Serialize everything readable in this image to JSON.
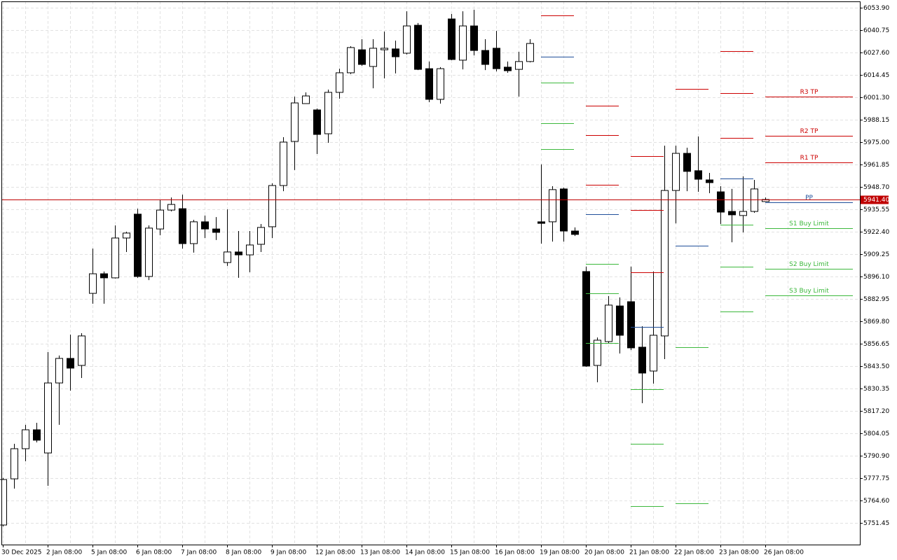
{
  "chart_data": {
    "type": "candlestick",
    "ylim": [
      5738.7,
      6057.6
    ],
    "yticks": [
      {
        "value": 6053.9,
        "label": "6053.90"
      },
      6040.75,
      {
        "value": 6027.6,
        "label": "6027.60"
      },
      6014.45,
      {
        "value": 6001.3,
        "label": "6001.30"
      },
      5988.15,
      {
        "value": 5975,
        "label": "5975.00"
      },
      5961.85,
      {
        "value": 5948.7,
        "label": "5948.70"
      },
      5935.55,
      {
        "value": 5922.4,
        "label": "5922.40"
      },
      5909.25,
      {
        "value": 5896.1,
        "label": "5896.10"
      },
      5882.95,
      {
        "value": 5869.8,
        "label": "5869.80"
      },
      5856.65,
      {
        "value": 5843.5,
        "label": "5843.50"
      },
      5830.35,
      {
        "value": 5817.2,
        "label": "5817.20"
      },
      5804.05,
      {
        "value": 5790.9,
        "label": "5790.90"
      },
      5777.75,
      {
        "value": 5764.6,
        "label": "5764.60"
      },
      5751.45
    ],
    "grid": true,
    "up_color": "#ffffff",
    "down_color": "#000000",
    "current_price": {
      "value": 5941.4,
      "label": "5941.40",
      "color": "#c00000"
    },
    "days": [
      {
        "label": "30 Dec 2025",
        "candles": [
          {
            "open": 5750.2,
            "high": 5777.8,
            "low": 5749.4,
            "close": 5776.9
          },
          {
            "open": 5777.3,
            "high": 5797.9,
            "low": 5771.6,
            "close": 5795.0
          },
          {
            "open": 5795.0,
            "high": 5809.0,
            "low": 5787.6,
            "close": 5806.1
          },
          {
            "open": 5806.1,
            "high": 5810.2,
            "low": 5798.7,
            "close": 5800.0
          }
        ]
      },
      {
        "label": "2 Jan 08:00",
        "candles": [
          {
            "open": 5792.5,
            "high": 5851.7,
            "low": 5773.2,
            "close": 5833.6
          },
          {
            "open": 5833.6,
            "high": 5849.7,
            "low": 5809.0,
            "close": 5848.0
          },
          {
            "open": 5848.0,
            "high": 5862.0,
            "low": 5829.1,
            "close": 5842.3
          },
          {
            "open": 5843.9,
            "high": 5862.8,
            "low": 5836.5,
            "close": 5861.2
          }
        ]
      },
      {
        "label": "5 Jan 08:00",
        "candles": [
          {
            "open": 5886.2,
            "high": 5912.5,
            "low": 5880.1,
            "close": 5897.7
          },
          {
            "open": 5897.7,
            "high": 5899.0,
            "low": 5880.1,
            "close": 5895.3
          },
          {
            "open": 5895.3,
            "high": 5926.1,
            "low": 5894.9,
            "close": 5918.7
          },
          {
            "open": 5918.7,
            "high": 5922.4,
            "low": 5910.5,
            "close": 5921.6
          }
        ]
      },
      {
        "label": "6 Jan 08:00",
        "candles": [
          {
            "open": 5932.7,
            "high": 5935.9,
            "low": 5895.3,
            "close": 5896.1
          },
          {
            "open": 5896.1,
            "high": 5926.1,
            "low": 5894.0,
            "close": 5924.5
          },
          {
            "open": 5924.0,
            "high": 5940.9,
            "low": 5920.3,
            "close": 5935.1
          },
          {
            "open": 5935.1,
            "high": 5942.5,
            "low": 5934.3,
            "close": 5938.4
          }
        ]
      },
      {
        "label": "7 Jan 08:00",
        "candles": [
          {
            "open": 5935.9,
            "high": 5944.2,
            "low": 5912.5,
            "close": 5915.4
          },
          {
            "open": 5915.4,
            "high": 5929.4,
            "low": 5910.1,
            "close": 5928.2
          },
          {
            "open": 5928.2,
            "high": 5931.9,
            "low": 5918.7,
            "close": 5924.0
          },
          {
            "open": 5924.0,
            "high": 5931.0,
            "low": 5917.5,
            "close": 5922.0
          }
        ]
      },
      {
        "label": "8 Jan 08:00",
        "candles": [
          {
            "open": 5904.3,
            "high": 5935.5,
            "low": 5902.3,
            "close": 5910.5
          },
          {
            "open": 5910.5,
            "high": 5922.8,
            "low": 5895.3,
            "close": 5908.8
          },
          {
            "open": 5908.8,
            "high": 5922.8,
            "low": 5898.6,
            "close": 5914.6
          },
          {
            "open": 5915.0,
            "high": 5926.9,
            "low": 5910.5,
            "close": 5924.9
          }
        ]
      },
      {
        "label": "9 Jan 08:00",
        "candles": [
          {
            "open": 5925.3,
            "high": 5950.8,
            "low": 5918.7,
            "close": 5949.5
          },
          {
            "open": 5949.5,
            "high": 5977.9,
            "low": 5946.2,
            "close": 5975.0
          },
          {
            "open": 5975.4,
            "high": 6001.7,
            "low": 5958.6,
            "close": 5998.0
          },
          {
            "open": 5997.6,
            "high": 6004.2,
            "low": 5997.6,
            "close": 6002.1
          }
        ]
      },
      {
        "label": "12 Jan 08:00",
        "candles": [
          {
            "open": 5993.9,
            "high": 5994.7,
            "low": 5968.0,
            "close": 5979.5
          },
          {
            "open": 5979.9,
            "high": 6005.8,
            "low": 5974.6,
            "close": 6004.2
          },
          {
            "open": 6004.2,
            "high": 6018.1,
            "low": 6000.5,
            "close": 6015.7
          },
          {
            "open": 6015.7,
            "high": 6031.3,
            "low": 6014.9,
            "close": 6030.5
          }
        ]
      },
      {
        "label": "13 Jan 08:00",
        "candles": [
          {
            "open": 6029.2,
            "high": 6035.4,
            "low": 6019.8,
            "close": 6020.6
          },
          {
            "open": 6019.4,
            "high": 6035.4,
            "low": 6006.6,
            "close": 6030.1
          },
          {
            "open": 6029.2,
            "high": 6039.9,
            "low": 6012.4,
            "close": 6030.1
          },
          {
            "open": 6029.7,
            "high": 6034.6,
            "low": 6015.3,
            "close": 6025.1
          }
        ]
      },
      {
        "label": "14 Jan 08:00",
        "candles": [
          {
            "open": 6027.2,
            "high": 6051.8,
            "low": 6026.4,
            "close": 6043.2
          },
          {
            "open": 6043.6,
            "high": 6044.9,
            "low": 6017.3,
            "close": 6017.7
          },
          {
            "open": 6018.1,
            "high": 6022.3,
            "low": 5998.4,
            "close": 6000.1
          },
          {
            "open": 6000.1,
            "high": 6019.0,
            "low": 5997.6,
            "close": 6018.1
          }
        ]
      },
      {
        "label": "15 Jan 08:00",
        "candles": [
          {
            "open": 6047.3,
            "high": 6050.2,
            "low": 6023.1,
            "close": 6023.5
          },
          {
            "open": 6023.1,
            "high": 6051.8,
            "low": 6017.7,
            "close": 6043.2
          },
          {
            "open": 6043.2,
            "high": 6052.7,
            "low": 6025.9,
            "close": 6028.8
          },
          {
            "open": 6028.8,
            "high": 6035.4,
            "low": 6017.3,
            "close": 6020.6
          }
        ]
      },
      {
        "label": "16 Jan 08:00",
        "candles": [
          {
            "open": 6030.1,
            "high": 6040.3,
            "low": 6016.5,
            "close": 6018.1
          },
          {
            "open": 6019.0,
            "high": 6022.3,
            "low": 6015.7,
            "close": 6016.9
          },
          {
            "open": 6017.7,
            "high": 6028.0,
            "low": 6001.7,
            "close": 6022.3
          },
          {
            "open": 6022.3,
            "high": 6035.4,
            "low": 6021.8,
            "close": 6032.9
          }
        ]
      },
      {
        "label": "19 Jan 08:00",
        "candles": [
          {
            "open": 5928.2,
            "high": 5961.9,
            "low": 5915.4,
            "close": 5927.3
          },
          {
            "open": 5928.2,
            "high": 5949.1,
            "low": 5916.6,
            "close": 5947.1
          },
          {
            "open": 5947.5,
            "high": 5948.3,
            "low": 5916.6,
            "close": 5922.8
          },
          {
            "open": 5922.8,
            "high": 5924.9,
            "low": 5919.9,
            "close": 5920.8
          }
        ],
        "pivots": [
          {
            "value": 6049.4,
            "color": "#cc0000"
          },
          {
            "value": 6025.1,
            "color": "#1f4f9a"
          },
          {
            "value": 6009.9,
            "color": "#3cb83c"
          },
          {
            "value": 5986.1,
            "color": "#3cb83c"
          },
          {
            "value": 5970.9,
            "color": "#3cb83c"
          }
        ]
      },
      {
        "label": "20 Jan 08:00",
        "candles": [
          {
            "open": 5899.0,
            "high": 5901.9,
            "low": 5843.1,
            "close": 5843.5
          },
          {
            "open": 5843.9,
            "high": 5860.3,
            "low": 5834.0,
            "close": 5858.7
          },
          {
            "open": 5857.9,
            "high": 5884.6,
            "low": 5856.7,
            "close": 5879.3
          },
          {
            "open": 5878.8,
            "high": 5883.8,
            "low": 5850.9,
            "close": 5861.6
          }
        ],
        "pivots": [
          {
            "value": 5996.4,
            "color": "#cc0000"
          },
          {
            "value": 5979.1,
            "color": "#cc0000"
          },
          {
            "value": 5950.0,
            "color": "#cc0000"
          },
          {
            "value": 5932.7,
            "color": "#1f4f9a"
          },
          {
            "value": 5903.5,
            "color": "#3cb83c"
          },
          {
            "value": 5886.2,
            "color": "#3cb83c"
          },
          {
            "value": 5857.1,
            "color": "#3cb83c"
          }
        ]
      },
      {
        "label": "21 Jan 08:00",
        "candles": [
          {
            "open": 5881.3,
            "high": 5901.9,
            "low": 5852.9,
            "close": 5854.2
          },
          {
            "open": 5854.6,
            "high": 5866.9,
            "low": 5821.7,
            "close": 5839.4
          },
          {
            "open": 5840.6,
            "high": 5899.0,
            "low": 5833.2,
            "close": 5861.6
          },
          {
            "open": 5861.2,
            "high": 5972.9,
            "low": 5847.6,
            "close": 5946.6
          }
        ],
        "pivots": [
          {
            "value": 5966.8,
            "color": "#cc0000"
          },
          {
            "value": 5935.1,
            "color": "#cc0000"
          },
          {
            "value": 5898.6,
            "color": "#cc0000"
          },
          {
            "value": 5866.5,
            "color": "#1f4f9a"
          },
          {
            "value": 5830.0,
            "color": "#3cb83c"
          },
          {
            "value": 5797.9,
            "color": "#3cb83c"
          },
          {
            "value": 5761.3,
            "color": "#3cb83c"
          }
        ]
      },
      {
        "label": "22 Jan 08:00",
        "candles": [
          {
            "open": 5946.6,
            "high": 5972.9,
            "low": 5927.3,
            "close": 5968.4
          },
          {
            "open": 5968.4,
            "high": 5971.7,
            "low": 5946.2,
            "close": 5957.8
          },
          {
            "open": 5958.2,
            "high": 5978.3,
            "low": 5945.8,
            "close": 5953.2
          },
          {
            "open": 5952.8,
            "high": 5956.9,
            "low": 5945.0,
            "close": 5951.2
          }
        ],
        "pivots": [
          {
            "value": 6006.2,
            "color": "#cc0000"
          },
          {
            "value": 5914.2,
            "color": "#1f4f9a"
          },
          {
            "value": 5854.6,
            "color": "#3cb83c"
          },
          {
            "value": 5762.9,
            "color": "#3cb83c"
          }
        ]
      },
      {
        "label": "23 Jan 08:00",
        "candles": [
          {
            "open": 5945.8,
            "high": 5949.1,
            "low": 5926.9,
            "close": 5933.9
          },
          {
            "open": 5934.3,
            "high": 5947.5,
            "low": 5916.2,
            "close": 5932.3
          },
          {
            "open": 5931.9,
            "high": 5954.9,
            "low": 5922.0,
            "close": 5934.3
          },
          {
            "open": 5934.3,
            "high": 5952.8,
            "low": 5933.5,
            "close": 5947.5
          }
        ],
        "pivots": [
          {
            "value": 6028.4,
            "color": "#cc0000"
          },
          {
            "value": 6003.8,
            "color": "#cc0000"
          },
          {
            "value": 5977.5,
            "color": "#cc0000"
          },
          {
            "value": 5953.8,
            "color": "#1f4f9a"
          },
          {
            "value": 5926.5,
            "color": "#3cb83c"
          },
          {
            "value": 5901.9,
            "color": "#3cb83c"
          },
          {
            "value": 5875.5,
            "color": "#3cb83c"
          }
        ]
      },
      {
        "label": "26 Jan 08:00",
        "candles": [
          {
            "open": 5940.1,
            "high": 5942.5,
            "low": 5940.1,
            "close": 5941.3
          }
        ],
        "pivots": [
          {
            "value": 6001.7,
            "color": "#cc0000",
            "label": "R3 TP"
          },
          {
            "value": 5978.7,
            "color": "#cc0000",
            "label": "R2 TP"
          },
          {
            "value": 5963.1,
            "color": "#cc0000",
            "label": "R1 TP"
          },
          {
            "value": 5939.7,
            "color": "#1f4f9a",
            "label": "PP"
          },
          {
            "value": 5924.4,
            "color": "#3cb83c",
            "label": "S1 Buy Limit"
          },
          {
            "value": 5900.6,
            "color": "#3cb83c",
            "label": "S2 Buy Limit"
          },
          {
            "value": 5885.0,
            "color": "#3cb83c",
            "label": "S3 Buy Limit"
          }
        ]
      }
    ]
  }
}
